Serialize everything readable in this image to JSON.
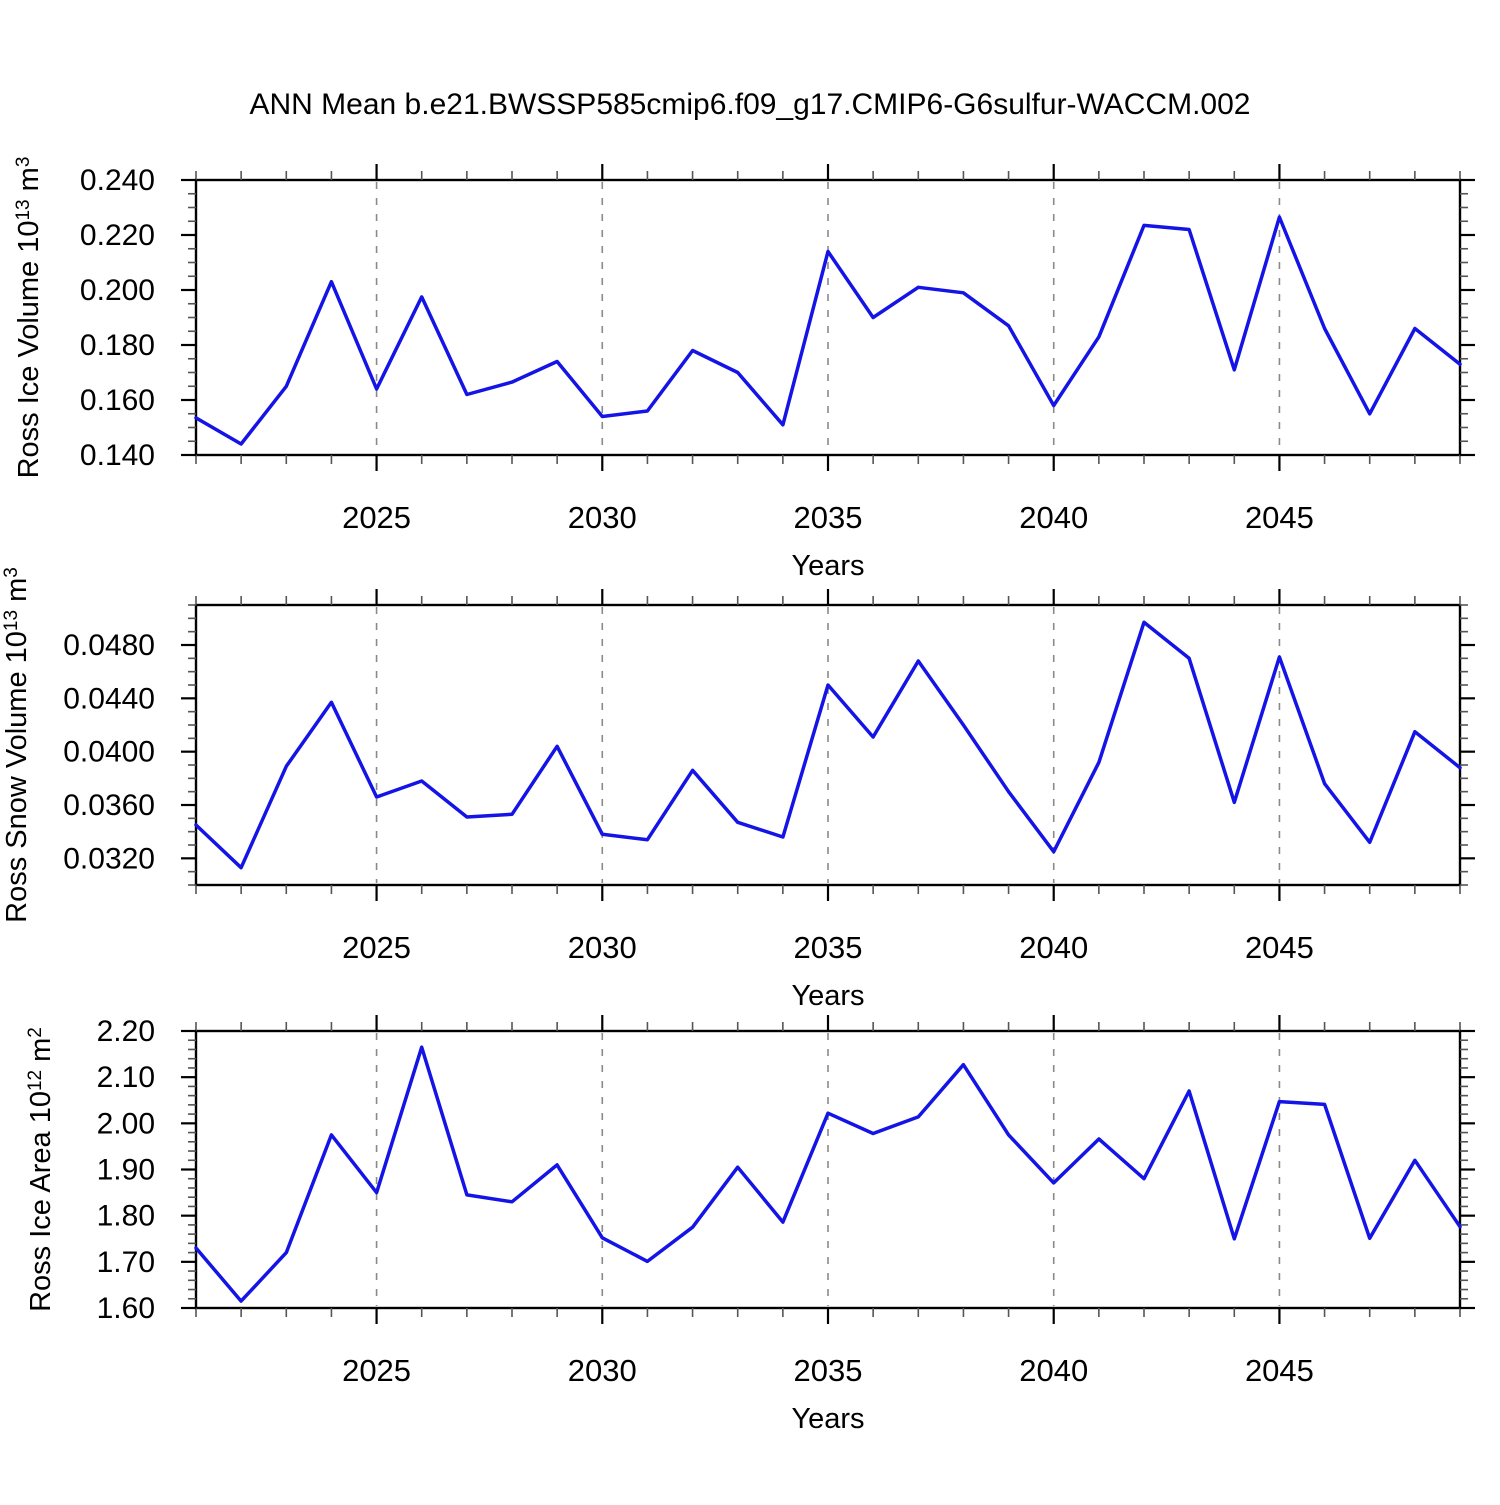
{
  "title": "ANN Mean b.e21.BWSSP585cmip6.f09_g17.CMIP6-G6sulfur-WACCM.002",
  "x_axis": {
    "label": "Years",
    "min": 2021,
    "max": 2049,
    "major_ticks": [
      2025,
      2030,
      2035,
      2040,
      2045
    ],
    "major_labels": [
      "2025",
      "2030",
      "2035",
      "2040",
      "2045"
    ],
    "gridline_years": [
      2025,
      2030,
      2035,
      2040,
      2045
    ],
    "minor_step": 1
  },
  "style": {
    "line_color": "#1414e6",
    "grid_color": "#8a8a8a",
    "axis_color": "#000000",
    "minor_tick_color": "#555555"
  },
  "chart_data": [
    {
      "id": "ross-ice-volume",
      "type": "line",
      "title_parts": [
        {
          "t": "Ross Ice Volume 10"
        },
        {
          "t": "13",
          "sup": true
        },
        {
          "t": " m"
        },
        {
          "t": "3",
          "sup": true
        }
      ],
      "ylim": [
        0.14,
        0.24
      ],
      "y_major": [
        0.24,
        0.22,
        0.2,
        0.18,
        0.16,
        0.14
      ],
      "y_major_labels": [
        "0.240",
        "0.220",
        "0.200",
        "0.180",
        "0.160",
        "0.140"
      ],
      "y_minor_step": 0.005,
      "x": [
        2021,
        2022,
        2023,
        2024,
        2025,
        2026,
        2027,
        2028,
        2029,
        2030,
        2031,
        2032,
        2033,
        2034,
        2035,
        2036,
        2037,
        2038,
        2039,
        2040,
        2041,
        2042,
        2043,
        2044,
        2045,
        2046,
        2047,
        2048,
        2049
      ],
      "values": [
        0.1535,
        0.144,
        0.165,
        0.203,
        0.164,
        0.1975,
        0.162,
        0.1665,
        0.174,
        0.154,
        0.156,
        0.178,
        0.17,
        0.151,
        0.214,
        0.19,
        0.201,
        0.199,
        0.187,
        0.158,
        0.183,
        0.2235,
        0.222,
        0.171,
        0.2265,
        0.186,
        0.155,
        0.186,
        0.173
      ]
    },
    {
      "id": "ross-snow-volume",
      "type": "line",
      "title_parts": [
        {
          "t": "Ross Snow Volume 10"
        },
        {
          "t": "13",
          "sup": true
        },
        {
          "t": " m"
        },
        {
          "t": "3",
          "sup": true
        }
      ],
      "ylim": [
        0.03,
        0.051
      ],
      "y_major": [
        0.048,
        0.044,
        0.04,
        0.036,
        0.032
      ],
      "y_major_labels": [
        "0.0480",
        "0.0440",
        "0.0400",
        "0.0360",
        "0.0320"
      ],
      "y_minor_step": 0.001,
      "x": [
        2021,
        2022,
        2023,
        2024,
        2025,
        2026,
        2027,
        2028,
        2029,
        2030,
        2031,
        2032,
        2033,
        2034,
        2035,
        2036,
        2037,
        2038,
        2039,
        2040,
        2041,
        2042,
        2043,
        2044,
        2045,
        2046,
        2047,
        2048,
        2049
      ],
      "values": [
        0.0345,
        0.0313,
        0.0389,
        0.0437,
        0.0366,
        0.0378,
        0.0351,
        0.0353,
        0.0404,
        0.0338,
        0.0334,
        0.0386,
        0.0347,
        0.0336,
        0.045,
        0.0411,
        0.0468,
        0.042,
        0.037,
        0.0325,
        0.0392,
        0.0497,
        0.047,
        0.0362,
        0.0471,
        0.0376,
        0.0332,
        0.0415,
        0.0388
      ]
    },
    {
      "id": "ross-ice-area",
      "type": "line",
      "title_parts": [
        {
          "t": "Ross Ice Area 10"
        },
        {
          "t": "12",
          "sup": true
        },
        {
          "t": " m"
        },
        {
          "t": "2",
          "sup": true
        }
      ],
      "ylim": [
        1.6,
        2.2
      ],
      "y_major": [
        2.2,
        2.1,
        2.0,
        1.9,
        1.8,
        1.7,
        1.6
      ],
      "y_major_labels": [
        "2.20",
        "2.10",
        "2.00",
        "1.90",
        "1.80",
        "1.70",
        "1.60"
      ],
      "y_minor_step": 0.02,
      "x": [
        2021,
        2022,
        2023,
        2024,
        2025,
        2026,
        2027,
        2028,
        2029,
        2030,
        2031,
        2032,
        2033,
        2034,
        2035,
        2036,
        2037,
        2038,
        2039,
        2040,
        2041,
        2042,
        2043,
        2044,
        2045,
        2046,
        2047,
        2048,
        2049
      ],
      "values": [
        1.73,
        1.615,
        1.72,
        1.975,
        1.85,
        2.165,
        1.845,
        1.83,
        1.91,
        1.752,
        1.701,
        1.775,
        1.905,
        1.786,
        2.022,
        1.978,
        2.014,
        2.127,
        1.975,
        1.871,
        1.966,
        1.88,
        2.07,
        1.75,
        2.047,
        2.041,
        1.751,
        1.92,
        1.776
      ]
    }
  ]
}
